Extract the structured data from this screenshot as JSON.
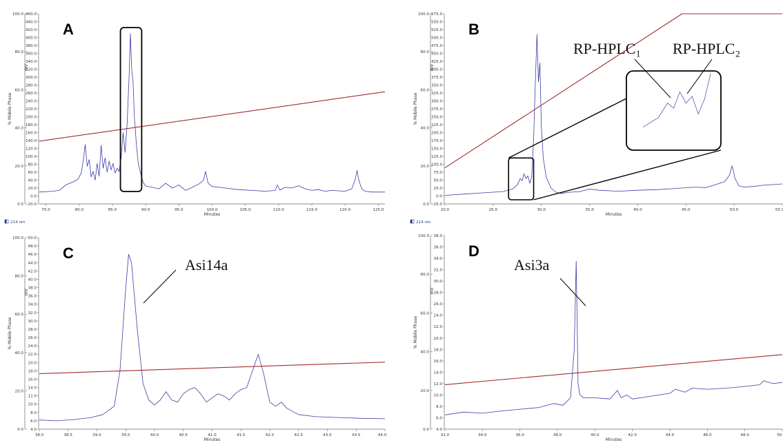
{
  "chart_data": [
    {
      "type": "line",
      "panel_label": "A",
      "xlabel": "Minutes",
      "ylabel_left": "% Mobile Phase",
      "ylabel_right": "mV",
      "xlim": [
        74,
        126
      ],
      "xticks": [
        75.0,
        80.0,
        85.0,
        90.0,
        95.0,
        100.0,
        105.0,
        110.0,
        115.0,
        120.0,
        125.0
      ],
      "left_axis": {
        "range": [
          0,
          100
        ],
        "ticks": [
          0.0,
          20.0,
          40.0,
          60.0,
          80.0,
          100.0
        ]
      },
      "right_axis": {
        "range": [
          -20,
          460
        ],
        "ticks": [
          -20.0,
          0.0,
          20.0,
          40.0,
          60.0,
          80.0,
          100.0,
          120.0,
          140.0,
          160.0,
          180.0,
          200.0,
          220.0,
          240.0,
          260.0,
          280.0,
          300.0,
          320.0,
          340.0,
          360.0,
          380.0,
          400.0,
          420.0,
          440.0,
          460.0
        ]
      },
      "wavelength": "214 nm",
      "series": [
        {
          "role": "mobile-phase",
          "color": "#a52a2a",
          "axis": "left",
          "x": [
            74,
            126
          ],
          "y": [
            33,
            59
          ]
        },
        {
          "role": "chromatogram",
          "color": "#3a3aa8",
          "axis": "right",
          "x": [
            74,
            76,
            77,
            78,
            79,
            79.8,
            80.3,
            80.6,
            80.9,
            81.2,
            81.5,
            81.8,
            82.1,
            82.4,
            82.7,
            83,
            83.3,
            83.6,
            83.9,
            84.2,
            84.5,
            84.8,
            85.1,
            85.4,
            85.7,
            86,
            86.3,
            86.6,
            86.9,
            87.2,
            87.5,
            87.7,
            87.9,
            88.1,
            88.3,
            88.6,
            88.9,
            89.2,
            89.6,
            90,
            91,
            92,
            93,
            94,
            95,
            96,
            97,
            98,
            98.7,
            99,
            99.4,
            100,
            101,
            102,
            104,
            106,
            108,
            109.5,
            109.8,
            110.2,
            111,
            112,
            113,
            114,
            115,
            116,
            117,
            118,
            119,
            120,
            121,
            121.5,
            121.8,
            122.1,
            122.5,
            123,
            124,
            126
          ],
          "y": [
            10,
            12,
            14,
            28,
            35,
            42,
            58,
            88,
            130,
            75,
            92,
            48,
            62,
            40,
            82,
            50,
            128,
            70,
            96,
            60,
            88,
            66,
            82,
            58,
            70,
            62,
            95,
            160,
            110,
            180,
            300,
            410,
            320,
            290,
            200,
            130,
            80,
            60,
            35,
            25,
            22,
            18,
            32,
            20,
            28,
            14,
            22,
            30,
            40,
            62,
            32,
            24,
            22,
            20,
            16,
            14,
            12,
            14,
            28,
            15,
            22,
            20,
            26,
            18,
            14,
            16,
            12,
            14,
            13,
            12,
            18,
            40,
            64,
            38,
            18,
            12,
            10,
            10
          ]
        }
      ]
    },
    {
      "type": "line",
      "panel_label": "B",
      "xlabel": "Minutes",
      "ylabel_left": "% Mobile Phase",
      "ylabel_right": "mV",
      "xlim": [
        20,
        55
      ],
      "xticks": [
        20.0,
        25.0,
        30.0,
        35.0,
        40.0,
        45.0,
        50.0,
        55
      ],
      "left_axis": {
        "range": [
          0,
          100
        ],
        "ticks": [
          0.0,
          20.0,
          40.0,
          60.0,
          80.0,
          100.0
        ]
      },
      "right_axis": {
        "range": [
          -25,
          575
        ],
        "ticks": [
          -25.0,
          0.0,
          25.0,
          50.0,
          75.0,
          100.0,
          125.0,
          150.0,
          175.0,
          200.0,
          225.0,
          250.0,
          275.0,
          300.0,
          325.0,
          350.0,
          375.0,
          400.0,
          425.0,
          450.0,
          475.0,
          500.0,
          525.0,
          550.0,
          575.0
        ]
      },
      "wavelength": "214 nm",
      "inset_labels": [
        "RP-HPLC₁",
        "RP-HPLC₂"
      ],
      "series": [
        {
          "role": "mobile-phase",
          "color": "#a52a2a",
          "axis": "left",
          "x": [
            20,
            44.6,
            55
          ],
          "y": [
            19,
            100,
            100
          ]
        },
        {
          "role": "chromatogram",
          "color": "#3a3aa8",
          "axis": "right",
          "x": [
            20,
            22,
            24,
            26,
            27,
            27.5,
            27.8,
            28.0,
            28.2,
            28.4,
            28.6,
            28.8,
            29.0,
            29.2,
            29.4,
            29.55,
            29.7,
            29.85,
            30.0,
            30.2,
            30.5,
            31,
            31.5,
            32,
            33,
            34,
            35,
            36,
            38,
            40,
            42,
            44,
            46,
            47,
            48,
            49,
            49.5,
            49.8,
            50.1,
            50.5,
            51,
            52,
            53,
            55
          ],
          "y": [
            2,
            6,
            10,
            14,
            22,
            35,
            55,
            48,
            70,
            55,
            64,
            40,
            60,
            180,
            380,
            510,
            360,
            420,
            220,
            120,
            60,
            25,
            12,
            8,
            12,
            14,
            22,
            18,
            15,
            18,
            20,
            24,
            28,
            26,
            35,
            45,
            65,
            95,
            55,
            32,
            28,
            30,
            34,
            38
          ]
        }
      ]
    },
    {
      "type": "line",
      "panel_label": "C",
      "annotation": "Asi14a",
      "xlabel": "Minutes",
      "ylabel_left": "% Mobile Phase",
      "ylabel_right": "mV",
      "xlim": [
        38,
        44
      ],
      "xticks": [
        38.0,
        38.5,
        39.0,
        39.5,
        40.0,
        40.5,
        41.0,
        41.5,
        42.0,
        42.5,
        43.0,
        43.5,
        44.0
      ],
      "left_axis": {
        "range": [
          0,
          100
        ],
        "ticks": [
          0.0,
          20.0,
          40.0,
          60.0,
          80.0,
          100.0
        ]
      },
      "right_axis": {
        "range": [
          4,
          50
        ],
        "ticks": [
          4.0,
          6.0,
          8.0,
          10.0,
          12.0,
          14.0,
          16.0,
          18.0,
          20.0,
          22.0,
          24.0,
          26.0,
          28.0,
          30.0,
          32.0,
          34.0,
          36.0,
          38.0,
          40.0,
          42.0,
          44.0,
          46.0,
          48.0,
          50.0
        ]
      },
      "series": [
        {
          "role": "mobile-phase",
          "color": "#a52a2a",
          "axis": "left",
          "x": [
            38,
            44
          ],
          "y": [
            29,
            35
          ]
        },
        {
          "role": "chromatogram",
          "color": "#3a3aa8",
          "axis": "right",
          "x": [
            38.0,
            38.3,
            38.6,
            38.9,
            39.1,
            39.3,
            39.4,
            39.5,
            39.55,
            39.6,
            39.7,
            39.8,
            39.9,
            40.0,
            40.1,
            40.2,
            40.3,
            40.4,
            40.5,
            40.6,
            40.7,
            40.8,
            40.9,
            41.0,
            41.1,
            41.2,
            41.3,
            41.4,
            41.5,
            41.6,
            41.7,
            41.8,
            41.9,
            42.0,
            42.1,
            42.2,
            42.3,
            42.5,
            42.8,
            43.2,
            43.6,
            44.0
          ],
          "y": [
            6.2,
            6.0,
            6.3,
            6.8,
            7.5,
            9.5,
            18,
            38,
            46,
            44,
            28,
            15,
            11,
            9.8,
            11,
            13,
            11,
            10.5,
            12.5,
            13.5,
            14,
            12.5,
            10.5,
            11.5,
            12.5,
            12,
            11,
            12.5,
            13.5,
            14,
            18,
            22,
            17,
            10.5,
            9.5,
            10.5,
            9,
            7.5,
            7,
            6.8,
            6.6,
            6.5
          ]
        }
      ]
    },
    {
      "type": "line",
      "panel_label": "D",
      "annotation": "Asi3a",
      "xlabel": "Minutes",
      "ylabel_left": "% Mobile Phase",
      "ylabel_right": "mV",
      "xlim": [
        32,
        50
      ],
      "xticks": [
        32.0,
        34.0,
        36.0,
        38.0,
        40.0,
        42.0,
        44.0,
        46.0,
        48.0,
        "50"
      ],
      "left_axis": {
        "range": [
          0,
          100
        ],
        "ticks": [
          0.0,
          20.0,
          40.0,
          60.0,
          80.0,
          100.0
        ]
      },
      "right_axis": {
        "range": [
          4,
          38
        ],
        "ticks": [
          4.0,
          6.0,
          8.0,
          10.0,
          12.0,
          14.0,
          16.0,
          18.0,
          20.0,
          22.0,
          24.0,
          26.0,
          28.0,
          30.0,
          32.0,
          34.0,
          36.0,
          38.0
        ]
      },
      "series": [
        {
          "role": "mobile-phase",
          "color": "#a52a2a",
          "axis": "left",
          "x": [
            32,
            50
          ],
          "y": [
            23,
            38.5
          ]
        },
        {
          "role": "chromatogram",
          "color": "#3a3aa8",
          "axis": "right",
          "x": [
            32,
            33,
            34,
            35,
            36,
            37,
            37.8,
            38.3,
            38.7,
            38.9,
            39.0,
            39.05,
            39.1,
            39.2,
            39.4,
            40,
            40.8,
            41.2,
            41.4,
            41.7,
            42,
            43,
            44,
            44.3,
            44.8,
            45.2,
            46,
            47,
            48,
            48.8,
            49,
            49.5,
            50
          ],
          "y": [
            6.5,
            7,
            6.8,
            7.2,
            7.5,
            7.8,
            8.5,
            8.2,
            9.5,
            18,
            33.5,
            24,
            12,
            10,
            9.5,
            9.5,
            9.3,
            10.8,
            9.5,
            10,
            9.3,
            9.8,
            10.3,
            11,
            10.5,
            11.2,
            11,
            11.2,
            11.5,
            11.8,
            12.5,
            12,
            12.2
          ]
        }
      ]
    }
  ],
  "panels_meta": {
    "wavelength_label": "214 nm"
  }
}
